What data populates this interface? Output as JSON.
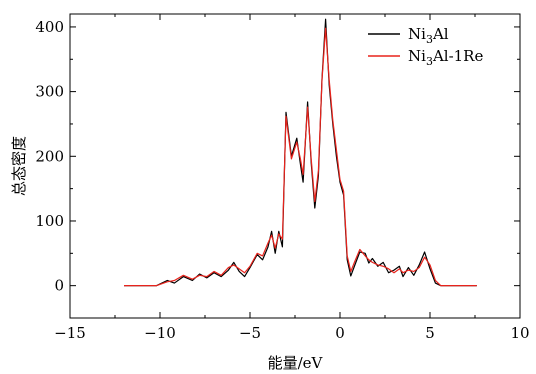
{
  "chart_data": {
    "type": "line",
    "title": "",
    "xlabel": "能量/eV",
    "ylabel": "总态密度",
    "xlim": [
      -15,
      10
    ],
    "ylim": [
      -50,
      420
    ],
    "xticks": [
      -15,
      -10,
      -5,
      0,
      5,
      10
    ],
    "yticks": [
      0,
      100,
      200,
      300,
      400
    ],
    "grid": false,
    "legend_position": "top-right",
    "series": [
      {
        "name": "Ni3Al",
        "legend_base": "Ni",
        "legend_sub": "3",
        "legend_rest": "Al",
        "color": "#000000",
        "points": [
          [
            -12,
            0
          ],
          [
            -10.2,
            0
          ],
          [
            -9.6,
            8
          ],
          [
            -9.2,
            4
          ],
          [
            -8.7,
            14
          ],
          [
            -8.2,
            8
          ],
          [
            -7.8,
            18
          ],
          [
            -7.4,
            12
          ],
          [
            -7.0,
            20
          ],
          [
            -6.6,
            14
          ],
          [
            -6.2,
            24
          ],
          [
            -5.9,
            36
          ],
          [
            -5.6,
            22
          ],
          [
            -5.3,
            14
          ],
          [
            -5.0,
            28
          ],
          [
            -4.6,
            48
          ],
          [
            -4.3,
            40
          ],
          [
            -4.0,
            60
          ],
          [
            -3.8,
            84
          ],
          [
            -3.6,
            50
          ],
          [
            -3.4,
            84
          ],
          [
            -3.2,
            60
          ],
          [
            -3.0,
            268
          ],
          [
            -2.7,
            200
          ],
          [
            -2.4,
            228
          ],
          [
            -2.2,
            188
          ],
          [
            -2.05,
            160
          ],
          [
            -1.8,
            284
          ],
          [
            -1.6,
            190
          ],
          [
            -1.4,
            120
          ],
          [
            -1.2,
            170
          ],
          [
            -1.0,
            320
          ],
          [
            -0.8,
            412
          ],
          [
            -0.6,
            310
          ],
          [
            -0.4,
            250
          ],
          [
            -0.2,
            200
          ],
          [
            0.0,
            160
          ],
          [
            0.2,
            140
          ],
          [
            0.4,
            40
          ],
          [
            0.6,
            15
          ],
          [
            0.8,
            30
          ],
          [
            1.1,
            52
          ],
          [
            1.4,
            50
          ],
          [
            1.6,
            35
          ],
          [
            1.8,
            42
          ],
          [
            2.1,
            30
          ],
          [
            2.4,
            36
          ],
          [
            2.7,
            20
          ],
          [
            3.0,
            24
          ],
          [
            3.3,
            30
          ],
          [
            3.5,
            14
          ],
          [
            3.8,
            28
          ],
          [
            4.1,
            16
          ],
          [
            4.4,
            32
          ],
          [
            4.7,
            52
          ],
          [
            5.0,
            26
          ],
          [
            5.3,
            4
          ],
          [
            5.6,
            0
          ],
          [
            7.6,
            0
          ]
        ]
      },
      {
        "name": "Ni3Al-1Re",
        "legend_base": "Ni",
        "legend_sub": "3",
        "legend_rest": "Al-1Re",
        "color": "#e8231c",
        "points": [
          [
            -12,
            0
          ],
          [
            -10.2,
            0
          ],
          [
            -9.6,
            6
          ],
          [
            -9.2,
            8
          ],
          [
            -8.7,
            16
          ],
          [
            -8.2,
            10
          ],
          [
            -7.8,
            16
          ],
          [
            -7.4,
            14
          ],
          [
            -7.0,
            22
          ],
          [
            -6.6,
            16
          ],
          [
            -6.2,
            28
          ],
          [
            -5.9,
            32
          ],
          [
            -5.6,
            26
          ],
          [
            -5.3,
            20
          ],
          [
            -5.0,
            30
          ],
          [
            -4.6,
            50
          ],
          [
            -4.3,
            46
          ],
          [
            -4.0,
            66
          ],
          [
            -3.8,
            78
          ],
          [
            -3.6,
            58
          ],
          [
            -3.4,
            80
          ],
          [
            -3.2,
            72
          ],
          [
            -3.0,
            262
          ],
          [
            -2.7,
            196
          ],
          [
            -2.4,
            222
          ],
          [
            -2.2,
            196
          ],
          [
            -2.05,
            172
          ],
          [
            -1.8,
            276
          ],
          [
            -1.6,
            196
          ],
          [
            -1.4,
            130
          ],
          [
            -1.2,
            178
          ],
          [
            -1.0,
            318
          ],
          [
            -0.8,
            398
          ],
          [
            -0.6,
            318
          ],
          [
            -0.4,
            256
          ],
          [
            -0.2,
            210
          ],
          [
            0.0,
            164
          ],
          [
            0.2,
            146
          ],
          [
            0.4,
            46
          ],
          [
            0.6,
            22
          ],
          [
            0.8,
            36
          ],
          [
            1.1,
            56
          ],
          [
            1.4,
            46
          ],
          [
            1.6,
            40
          ],
          [
            1.8,
            36
          ],
          [
            2.1,
            32
          ],
          [
            2.4,
            30
          ],
          [
            2.7,
            26
          ],
          [
            3.0,
            20
          ],
          [
            3.3,
            26
          ],
          [
            3.5,
            20
          ],
          [
            3.8,
            24
          ],
          [
            4.1,
            22
          ],
          [
            4.4,
            28
          ],
          [
            4.7,
            44
          ],
          [
            5.0,
            32
          ],
          [
            5.3,
            8
          ],
          [
            5.6,
            0
          ],
          [
            7.6,
            0
          ]
        ]
      }
    ]
  }
}
